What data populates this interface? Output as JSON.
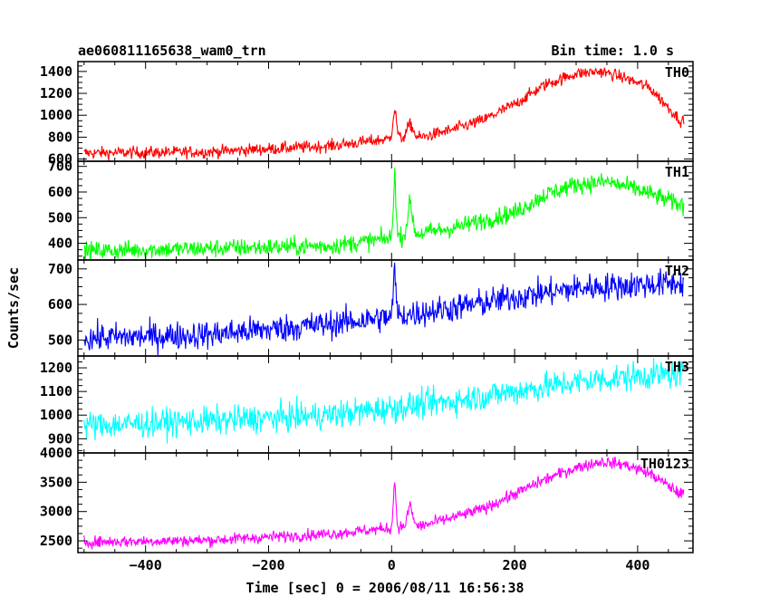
{
  "chart_data": {
    "type": "line",
    "title": "ae060811165638_wam0_trn",
    "subtitle": "Bin time: 1.0 s",
    "xlabel": "Time [sec] 0 = 2006/08/11 16:56:38",
    "ylabel": "Counts/sec",
    "xlim": [
      -510,
      490
    ],
    "x_ticks": [
      -400,
      -200,
      0,
      200,
      400
    ],
    "x_tick_labels": [
      "−400",
      "−200",
      "0",
      "200",
      "400"
    ],
    "x_range": [
      -500,
      475
    ],
    "grid": false,
    "panels": [
      {
        "name": "TH0",
        "color": "#ff0000",
        "ylim": [
          580,
          1490
        ],
        "yticks": [
          600,
          800,
          1000,
          1200,
          1400
        ],
        "baseline": [
          [
            -500,
            655
          ],
          [
            -300,
            665
          ],
          [
            -100,
            720
          ],
          [
            -10,
            780
          ],
          [
            50,
            800
          ],
          [
            100,
            870
          ],
          [
            150,
            960
          ],
          [
            200,
            1100
          ],
          [
            250,
            1280
          ],
          [
            300,
            1380
          ],
          [
            340,
            1400
          ],
          [
            380,
            1340
          ],
          [
            420,
            1250
          ],
          [
            470,
            950
          ]
        ],
        "noise": 28,
        "spikes": [
          [
            5,
            260,
            3
          ],
          [
            30,
            120,
            5
          ]
        ]
      },
      {
        "name": "TH1",
        "color": "#00ff00",
        "ylim": [
          335,
          720
        ],
        "yticks": [
          400,
          500,
          600,
          700
        ],
        "baseline": [
          [
            -500,
            370
          ],
          [
            -300,
            380
          ],
          [
            -100,
            390
          ],
          [
            0,
            420
          ],
          [
            50,
            440
          ],
          [
            100,
            460
          ],
          [
            200,
            520
          ],
          [
            250,
            590
          ],
          [
            300,
            630
          ],
          [
            350,
            640
          ],
          [
            400,
            610
          ],
          [
            470,
            550
          ]
        ],
        "noise": 18,
        "spikes": [
          [
            5,
            250,
            2
          ],
          [
            30,
            120,
            4
          ]
        ]
      },
      {
        "name": "TH2",
        "color": "#0000ff",
        "ylim": [
          455,
          725
        ],
        "yticks": [
          500,
          600,
          700
        ],
        "baseline": [
          [
            -500,
            505
          ],
          [
            -300,
            515
          ],
          [
            -100,
            545
          ],
          [
            0,
            565
          ],
          [
            100,
            590
          ],
          [
            200,
            620
          ],
          [
            300,
            645
          ],
          [
            400,
            655
          ],
          [
            470,
            660
          ]
        ],
        "noise": 20,
        "spikes": [
          [
            5,
            130,
            2
          ]
        ]
      },
      {
        "name": "TH3",
        "color": "#00ffff",
        "ylim": [
          840,
          1250
        ],
        "yticks": [
          900,
          1000,
          1100,
          1200
        ],
        "baseline": [
          [
            -500,
            955
          ],
          [
            -300,
            975
          ],
          [
            -100,
            1000
          ],
          [
            0,
            1030
          ],
          [
            100,
            1060
          ],
          [
            200,
            1100
          ],
          [
            300,
            1140
          ],
          [
            400,
            1165
          ],
          [
            470,
            1175
          ]
        ],
        "noise": 30,
        "spikes": []
      },
      {
        "name": "TH0123",
        "color": "#ff00ff",
        "ylim": [
          2300,
          4000
        ],
        "yticks": [
          2500,
          3000,
          3500,
          4000
        ],
        "baseline": [
          [
            -500,
            2480
          ],
          [
            -300,
            2510
          ],
          [
            -100,
            2620
          ],
          [
            0,
            2720
          ],
          [
            50,
            2760
          ],
          [
            100,
            2900
          ],
          [
            150,
            3050
          ],
          [
            200,
            3300
          ],
          [
            250,
            3550
          ],
          [
            300,
            3750
          ],
          [
            340,
            3850
          ],
          [
            380,
            3800
          ],
          [
            420,
            3650
          ],
          [
            470,
            3300
          ]
        ],
        "noise": 50,
        "spikes": [
          [
            5,
            800,
            2
          ],
          [
            30,
            350,
            4
          ]
        ]
      }
    ]
  }
}
